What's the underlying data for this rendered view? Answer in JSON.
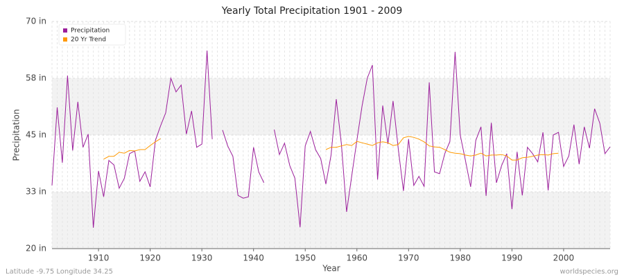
{
  "chart_data": {
    "type": "line",
    "title": "Yearly Total Precipitation 1901 - 2009",
    "y_label": "Precipitation",
    "x_label": "Year",
    "footer_left": "Latitude -9.75 Longitude 34.25",
    "footer_right": "worldspecies.org",
    "x": [
      1901,
      1902,
      1903,
      1904,
      1905,
      1906,
      1907,
      1908,
      1909,
      1910,
      1911,
      1912,
      1913,
      1914,
      1915,
      1916,
      1917,
      1918,
      1919,
      1920,
      1921,
      1922,
      1923,
      1924,
      1925,
      1926,
      1927,
      1928,
      1929,
      1930,
      1931,
      1932,
      1933,
      1934,
      1935,
      1936,
      1937,
      1938,
      1939,
      1940,
      1941,
      1942,
      1943,
      1944,
      1945,
      1946,
      1947,
      1948,
      1949,
      1950,
      1951,
      1952,
      1953,
      1954,
      1955,
      1956,
      1957,
      1958,
      1959,
      1960,
      1961,
      1962,
      1963,
      1964,
      1965,
      1966,
      1967,
      1968,
      1969,
      1970,
      1971,
      1972,
      1973,
      1974,
      1975,
      1976,
      1977,
      1978,
      1979,
      1980,
      1981,
      1982,
      1983,
      1984,
      1985,
      1986,
      1987,
      1988,
      1989,
      1990,
      1991,
      1992,
      1993,
      1994,
      1995,
      1996,
      1997,
      1998,
      1999,
      2000,
      2001,
      2002,
      2003,
      2004,
      2005,
      2006,
      2007,
      2008,
      2009
    ],
    "series": [
      {
        "name": "Precipitation",
        "color": "#9b1e9b",
        "values": [
          33.9,
          51.1,
          38.9,
          58.1,
          41.6,
          52.3,
          42.3,
          45.2,
          24.6,
          37.1,
          31.4,
          39.4,
          38.4,
          33.3,
          35.5,
          40.9,
          41.5,
          34.8,
          36.9,
          33.6,
          43.8,
          47.0,
          49.9,
          57.5,
          54.5,
          56.0,
          45.2,
          50.3,
          42.3,
          43.0,
          63.6,
          44.1,
          null,
          46.1,
          42.6,
          40.3,
          31.7,
          31.1,
          31.4,
          42.3,
          36.9,
          34.5,
          null,
          46.2,
          40.7,
          43.2,
          38.3,
          35.5,
          24.7,
          42.6,
          45.8,
          41.8,
          39.8,
          34.2,
          40.6,
          52.9,
          43.0,
          28.1,
          36.0,
          43.9,
          51.4,
          57.5,
          60.4,
          35.2,
          51.5,
          43.0,
          52.5,
          42.0,
          32.7,
          44.1,
          33.9,
          35.9,
          33.7,
          56.6,
          36.9,
          36.5,
          40.9,
          43.6,
          63.3,
          45.0,
          39.4,
          33.6,
          43.8,
          46.8,
          31.6,
          47.7,
          34.5,
          38.3,
          40.9,
          28.7,
          41.3,
          31.7,
          42.3,
          40.9,
          39.1,
          45.6,
          32.8,
          45.0,
          45.6,
          38.1,
          40.4,
          47.3,
          38.6,
          46.8,
          42.1,
          50.8,
          47.6,
          40.9,
          42.4
        ]
      },
      {
        "name": "20 Yr Trend",
        "color": "#ff9900",
        "values": [
          null,
          null,
          null,
          null,
          null,
          null,
          null,
          null,
          null,
          null,
          39.7,
          40.3,
          40.3,
          41.2,
          41.0,
          41.6,
          41.5,
          41.8,
          41.8,
          42.7,
          43.5,
          44.2,
          null,
          null,
          null,
          null,
          null,
          null,
          null,
          null,
          null,
          null,
          null,
          null,
          null,
          null,
          null,
          null,
          null,
          null,
          null,
          null,
          null,
          null,
          null,
          null,
          null,
          null,
          null,
          null,
          null,
          null,
          null,
          41.8,
          42.3,
          42.3,
          42.6,
          42.9,
          42.7,
          43.6,
          43.3,
          43.0,
          42.7,
          43.3,
          43.5,
          43.3,
          42.7,
          42.9,
          44.4,
          44.7,
          44.5,
          44.1,
          43.5,
          42.6,
          42.4,
          42.3,
          41.8,
          41.2,
          41.0,
          40.9,
          40.6,
          40.4,
          40.6,
          41.0,
          40.4,
          40.6,
          40.6,
          40.7,
          40.4,
          39.5,
          39.5,
          40.0,
          40.1,
          40.3,
          40.6,
          40.7,
          40.6,
          40.9,
          41.0,
          null,
          null,
          null,
          null,
          null,
          null,
          null,
          null,
          null,
          null
        ]
      }
    ],
    "xlim": [
      1901,
      2009
    ],
    "xticks": [
      1910,
      1920,
      1930,
      1940,
      1950,
      1960,
      1970,
      1980,
      1990,
      2000
    ],
    "ylim": [
      20,
      70
    ],
    "yticks": [
      {
        "value": 20,
        "label": "20 in"
      },
      {
        "value": 32.5,
        "label": "33 in"
      },
      {
        "value": 45,
        "label": "45 in"
      },
      {
        "value": 57.5,
        "label": "58 in"
      },
      {
        "value": 70,
        "label": "70 in"
      }
    ],
    "grid": true,
    "legend": "top-left"
  }
}
